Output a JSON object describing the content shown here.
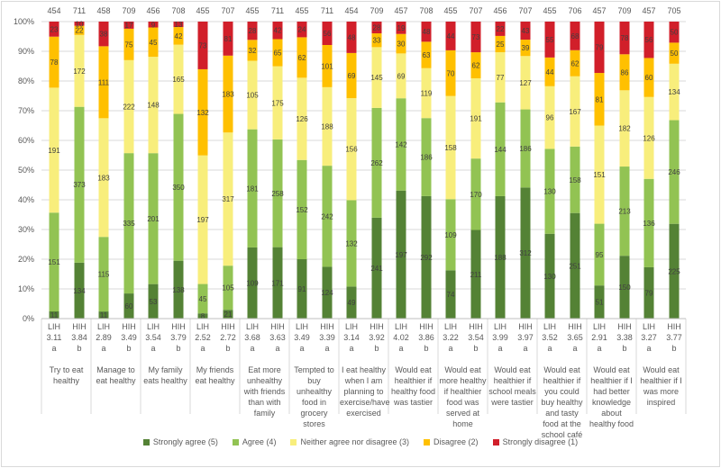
{
  "chart_data": {
    "type": "bar",
    "stacked": true,
    "normalized": true,
    "ylim": [
      0,
      100
    ],
    "yticks": [
      "0%",
      "10%",
      "20%",
      "30%",
      "40%",
      "50%",
      "60%",
      "70%",
      "80%",
      "90%",
      "100%"
    ],
    "grid": true,
    "legend_position": "bottom",
    "series_names": [
      "Strongly agree (5)",
      "Agree (4)",
      "Neither agree nor disagree (3)",
      "Disagree (2)",
      "Strongly disagree (1)"
    ],
    "colors": [
      "#548235",
      "#92c353",
      "#f8ee7c",
      "#ffc000",
      "#d11f2a"
    ],
    "groups": [
      {
        "label": "Try to eat healthy",
        "bars": [
          {
            "group": "LIH",
            "mean": "3.11",
            "sig": "a",
            "n": "454",
            "values": [
              11,
              151,
              191,
              78,
              23
            ]
          },
          {
            "group": "HIH",
            "mean": "3.84",
            "sig": "b",
            "n": "711",
            "values": [
              134,
              373,
              172,
              22,
              10
            ]
          }
        ]
      },
      {
        "label": "Manage to eat healthy",
        "bars": [
          {
            "group": "LIH",
            "mean": "2.89",
            "sig": "a",
            "n": "458",
            "values": [
              11,
              115,
              183,
              111,
              38
            ]
          },
          {
            "group": "HIH",
            "mean": "3.49",
            "sig": "b",
            "n": "709",
            "values": [
              60,
              335,
              222,
              75,
              17
            ]
          }
        ]
      },
      {
        "label": "My family eats healthy",
        "bars": [
          {
            "group": "LIH",
            "mean": "3.54",
            "sig": "a",
            "n": "456",
            "values": [
              53,
              201,
              148,
              45,
              9
            ]
          },
          {
            "group": "HIH",
            "mean": "3.79",
            "sig": "b",
            "n": "708",
            "values": [
              138,
              350,
              165,
              42,
              13
            ]
          }
        ]
      },
      {
        "label": "My friends eat healthy",
        "bars": [
          {
            "group": "LIH",
            "mean": "2.52",
            "sig": "a",
            "n": "455",
            "values": [
              8,
              45,
              197,
              132,
              73
            ]
          },
          {
            "group": "HIH",
            "mean": "2.72",
            "sig": "b",
            "n": "707",
            "values": [
              21,
              105,
              317,
              183,
              81
            ]
          }
        ]
      },
      {
        "label": "Eat more unhealthy with friends than with family",
        "bars": [
          {
            "group": "LIH",
            "mean": "3.68",
            "sig": "a",
            "n": "455",
            "values": [
              109,
              181,
              105,
              32,
              28
            ]
          },
          {
            "group": "HIH",
            "mean": "3.63",
            "sig": "a",
            "n": "711",
            "values": [
              171,
              258,
              175,
              65,
              42
            ]
          }
        ]
      },
      {
        "label": "Tempted to buy unhealthy food in grocery stores",
        "bars": [
          {
            "group": "LIH",
            "mean": "3.49",
            "sig": "a",
            "n": "455",
            "values": [
              91,
              152,
              126,
              62,
              24
            ]
          },
          {
            "group": "HIH",
            "mean": "3.39",
            "sig": "a",
            "n": "711",
            "values": [
              124,
              242,
              188,
              101,
              56
            ]
          }
        ]
      },
      {
        "label": "I eat healthy when I am planning to exercise/have exercised",
        "bars": [
          {
            "group": "LIH",
            "mean": "3.14",
            "sig": "a",
            "n": "454",
            "values": [
              49,
              132,
              156,
              69,
              48
            ]
          },
          {
            "group": "HIH",
            "mean": "3.92",
            "sig": "b",
            "n": "709",
            "values": [
              241,
              262,
              145,
              33,
              28
            ]
          }
        ]
      },
      {
        "label": "Would eat healthier if healthy food was tastier",
        "bars": [
          {
            "group": "LIH",
            "mean": "4.02",
            "sig": "a",
            "n": "457",
            "values": [
              197,
              142,
              69,
              30,
              19
            ]
          },
          {
            "group": "HIH",
            "mean": "3.86",
            "sig": "b",
            "n": "708",
            "values": [
              292,
              186,
              119,
              63,
              48
            ]
          }
        ]
      },
      {
        "label": "Would eat more healthy if healthier food was served at home",
        "bars": [
          {
            "group": "LIH",
            "mean": "3.22",
            "sig": "a",
            "n": "455",
            "values": [
              74,
              109,
              158,
              70,
              44
            ]
          },
          {
            "group": "HIH",
            "mean": "3.54",
            "sig": "b",
            "n": "707",
            "values": [
              211,
              170,
              191,
              62,
              73
            ]
          }
        ]
      },
      {
        "label": "Would eat healthier if school meals were tastier",
        "bars": [
          {
            "group": "LIH",
            "mean": "3.99",
            "sig": "a",
            "n": "456",
            "values": [
              188,
              144,
              77,
              25,
              22
            ]
          },
          {
            "group": "HIH",
            "mean": "3.97",
            "sig": "a",
            "n": "707",
            "values": [
              312,
              186,
              127,
              39,
              43
            ]
          }
        ]
      },
      {
        "label": "Would eat healthier if you could buy healthy and tasty food at the school café",
        "bars": [
          {
            "group": "LIH",
            "mean": "3.52",
            "sig": "a",
            "n": "455",
            "values": [
              130,
              130,
              96,
              44,
              55
            ]
          },
          {
            "group": "HIH",
            "mean": "3.65",
            "sig": "a",
            "n": "706",
            "values": [
              251,
              158,
              167,
              62,
              68
            ]
          }
        ]
      },
      {
        "label": "Would eat healthier if I had better knowledge about healthy food",
        "bars": [
          {
            "group": "LIH",
            "mean": "2.91",
            "sig": "a",
            "n": "457",
            "values": [
              51,
              95,
              151,
              81,
              79
            ]
          },
          {
            "group": "HIH",
            "mean": "3.38",
            "sig": "b",
            "n": "709",
            "values": [
              150,
              213,
              182,
              86,
              78
            ]
          }
        ]
      },
      {
        "label": "Would eat healthier if I was more inspired",
        "bars": [
          {
            "group": "LIH",
            "mean": "3.27",
            "sig": "a",
            "n": "457",
            "values": [
              79,
              136,
              126,
              60,
              56
            ]
          },
          {
            "group": "HIH",
            "mean": "3.77",
            "sig": "b",
            "n": "705",
            "values": [
              225,
              246,
              134,
              50,
              50
            ]
          }
        ]
      }
    ]
  }
}
